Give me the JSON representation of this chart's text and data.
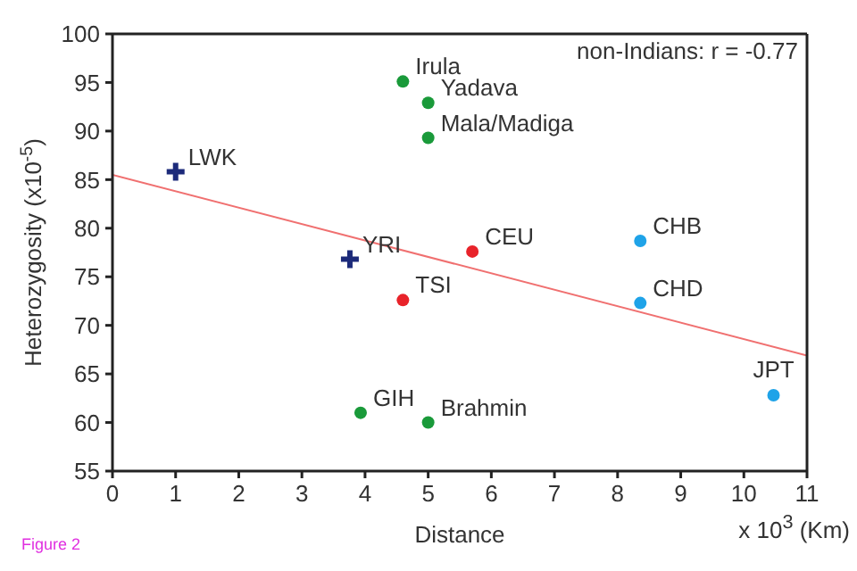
{
  "chart_data": {
    "type": "scatter",
    "xlabel": "Distance",
    "ylabel": "Heterozygosity (x10$^{-5}$)",
    "xlim": [
      0,
      11
    ],
    "xticks": [
      0,
      1,
      2,
      3,
      4,
      5,
      6,
      7,
      8,
      9,
      10,
      11
    ],
    "ylim": [
      55,
      100
    ],
    "yticks": [
      55,
      60,
      65,
      70,
      75,
      80,
      85,
      90,
      95,
      100
    ],
    "series": [
      {
        "type": "line",
        "color": "#f07070",
        "x": [
          0,
          11
        ],
        "values": [
          85.5,
          66.9
        ],
        "marker": "none",
        "line_style": "solid"
      },
      {
        "color": "#1a9a3a",
        "marker": "circle",
        "x": [
          4.6,
          5.0,
          5.0,
          3.93,
          5.0
        ],
        "values": [
          95.1,
          92.9,
          89.3,
          61.0,
          60.0
        ]
      },
      {
        "color": "#1c2a7a",
        "marker": "cross",
        "x": [
          1.0,
          3.76
        ],
        "values": [
          85.8,
          76.8
        ]
      },
      {
        "color": "#e8232a",
        "marker": "circle",
        "x": [
          5.7,
          4.6
        ],
        "values": [
          77.6,
          72.6
        ]
      },
      {
        "color": "#1fa3e8",
        "marker": "circle",
        "x": [
          8.36,
          8.36,
          10.47
        ],
        "values": [
          78.7,
          72.3,
          62.8
        ]
      }
    ],
    "annotations": [
      {
        "text": "Irula",
        "x": 4.6,
        "y": 95.1
      },
      {
        "text": "Yadava",
        "x": 5.0,
        "y": 92.9
      },
      {
        "text": "Mala/Madiga",
        "x": 5.0,
        "y": 89.3
      },
      {
        "text": "GIH",
        "x": 3.93,
        "y": 61.0
      },
      {
        "text": "Brahmin",
        "x": 5.0,
        "y": 60.0
      },
      {
        "text": "LWK",
        "x": 1.0,
        "y": 85.8
      },
      {
        "text": "YRI",
        "x": 3.76,
        "y": 76.8
      },
      {
        "text": "CEU",
        "x": 5.7,
        "y": 77.6
      },
      {
        "text": "TSI",
        "x": 4.6,
        "y": 72.6
      },
      {
        "text": "CHB",
        "x": 8.36,
        "y": 78.7
      },
      {
        "text": "CHD",
        "x": 8.36,
        "y": 72.3
      },
      {
        "text": "JPT",
        "x": 10.47,
        "y": 62.8
      },
      "non-Indians: r = -0.77",
      "x 10$^{3}$ (Km)",
      "Figure 2"
    ]
  }
}
